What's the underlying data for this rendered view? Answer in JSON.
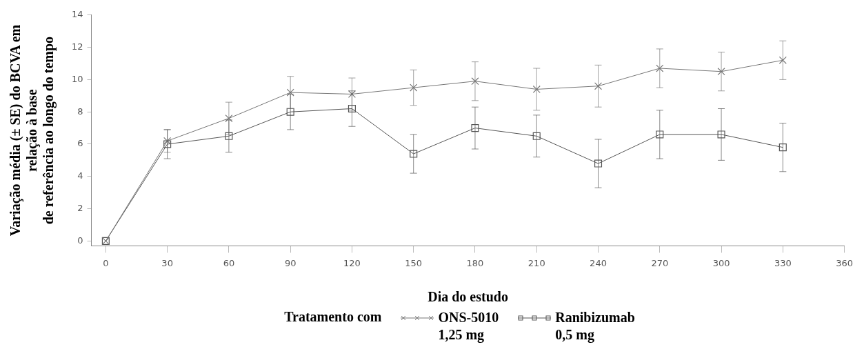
{
  "chart_data": {
    "type": "line",
    "xlabel": "Dia do estudo",
    "ylabel": "Variação média (± SE) do BCVA em\nrelação à base\nde referência ao longo do tempo",
    "legend_title": "Tratamento com",
    "legend": "bottom",
    "grid": false,
    "x": [
      0,
      30,
      60,
      90,
      120,
      150,
      180,
      210,
      240,
      270,
      300,
      330
    ],
    "xlim": [
      -7,
      360
    ],
    "xticks": [
      0,
      30,
      60,
      90,
      120,
      150,
      180,
      210,
      240,
      270,
      300,
      330,
      360
    ],
    "ylim": [
      -0.3,
      14
    ],
    "yticks": [
      0,
      2,
      4,
      6,
      8,
      10,
      12,
      14
    ],
    "series": [
      {
        "name": "ONS-5010\n1,25 mg",
        "color": "#777777",
        "marker": "cross",
        "values": [
          0,
          6.2,
          7.6,
          9.2,
          9.1,
          9.5,
          9.9,
          9.4,
          9.6,
          10.7,
          10.5,
          11.2
        ],
        "errors": [
          null,
          0.7,
          1.0,
          1.0,
          1.0,
          1.1,
          1.2,
          1.3,
          1.3,
          1.2,
          1.2,
          1.2
        ]
      },
      {
        "name": "Ranibizumab\n0,5 mg",
        "color": "#555555",
        "marker": "square",
        "values": [
          0,
          6.0,
          6.5,
          8.0,
          8.2,
          5.4,
          7.0,
          6.5,
          4.8,
          6.6,
          6.6,
          5.8
        ],
        "errors": [
          null,
          0.9,
          1.0,
          1.1,
          1.1,
          1.2,
          1.3,
          1.3,
          1.5,
          1.5,
          1.6,
          1.5
        ]
      }
    ]
  }
}
